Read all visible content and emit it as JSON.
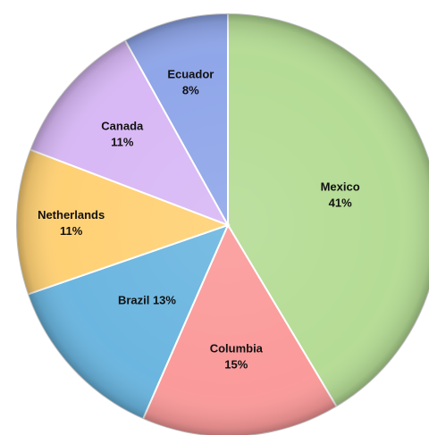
{
  "chart_data": {
    "type": "pie",
    "categories": [
      "Mexico",
      "Columbia",
      "Brazil",
      "Netherlands",
      "Canada",
      "Ecuador"
    ],
    "values": [
      41,
      15,
      13,
      11,
      11,
      8
    ],
    "labels": [
      {
        "name": "Mexico",
        "value": "41%"
      },
      {
        "name": "Columbia",
        "value": "15%"
      },
      {
        "name": "Brazil",
        "value": "13%"
      },
      {
        "name": "Netherlands",
        "value": "11%"
      },
      {
        "name": "Canada",
        "value": "11%"
      },
      {
        "name": "Ecuador",
        "value": "8%"
      }
    ],
    "colors": [
      "#b5dc95",
      "#fb9a9a",
      "#6bb6e0",
      "#ffd175",
      "#d8b8f5",
      "#8fa6e9"
    ],
    "start": "12 o'clock",
    "direction": "clockwise",
    "legend": "none",
    "title": ""
  }
}
